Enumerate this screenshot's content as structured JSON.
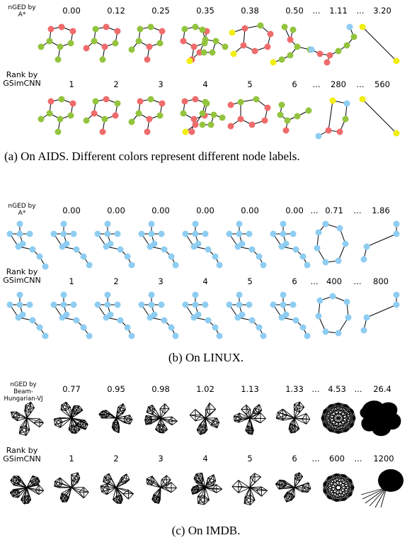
{
  "panels": [
    {
      "id": "aids",
      "header_label": "nGED by\nA*",
      "header_values": [
        "0.00",
        "0.12",
        "0.25",
        "0.35",
        "0.38",
        "0.50",
        "1.11",
        "3.20"
      ],
      "rank_label": "Rank by\nGSimCNN",
      "rank_values": [
        "1",
        "2",
        "3",
        "4",
        "5",
        "6",
        "280",
        "560"
      ],
      "ellipsis": "...",
      "caption": "(a) On AIDS. Different colors represent different node labels."
    },
    {
      "id": "linux",
      "header_label": "nGED by\nA*",
      "header_values": [
        "0.00",
        "0.00",
        "0.00",
        "0.00",
        "0.00",
        "0.00",
        "0.71",
        "1.86"
      ],
      "rank_label": "Rank by\nGSimCNN",
      "rank_values": [
        "1",
        "2",
        "3",
        "4",
        "5",
        "6",
        "400",
        "800"
      ],
      "ellipsis": "...",
      "caption": "(b) On LINUX."
    },
    {
      "id": "imdb",
      "header_label": "nGED by Beam-\nHungarian-VJ",
      "header_values": [
        "0.77",
        "0.95",
        "0.98",
        "1.02",
        "1.13",
        "1.33",
        "4.53",
        "26.4"
      ],
      "rank_label": "Rank by\nGSimCNN",
      "rank_values": [
        "1",
        "2",
        "3",
        "4",
        "5",
        "6",
        "600",
        "1200"
      ],
      "ellipsis": "...",
      "caption": "(c) On IMDB."
    }
  ],
  "colors": {
    "red": "#f06b6b",
    "green": "#93c43d",
    "yellow": "#f2ee10",
    "blue": "#8ecdf2",
    "edge": "#000000"
  }
}
